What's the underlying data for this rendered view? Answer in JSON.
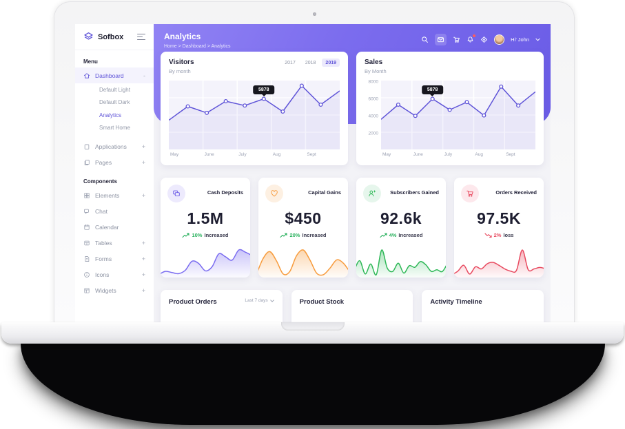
{
  "header": {
    "title": "Analytics",
    "breadcrumb": "Home > Dashboard > Analytics",
    "user_greeting": "Hi' John"
  },
  "sidebar": {
    "brand": "Sofbox",
    "menu_heading": "Menu",
    "components_heading": "Components",
    "expand_indicator": "+",
    "collapse_indicator": "-",
    "items": {
      "dashboard": "Dashboard",
      "default_light": "Default Light",
      "default_dark": "Default Dark",
      "analytics": "Analytics",
      "smart_home": "Smart Home",
      "applications": "Applications",
      "pages": "Pages",
      "elements": "Elements",
      "chat": "Chat",
      "calendar": "Calendar",
      "tables": "Tables",
      "forms": "Forms",
      "icons": "Icons",
      "widgets": "Widgets"
    }
  },
  "chart_data": [
    {
      "type": "line",
      "title": "Visitors",
      "subtitle": "By month",
      "years": [
        "2017",
        "2018",
        "2019"
      ],
      "active_year": "2019",
      "x_labels": [
        "May",
        "June",
        "July",
        "Aug",
        "Sept"
      ],
      "values": [
        3400,
        5000,
        4250,
        5600,
        5100,
        5878,
        4400,
        7400,
        5200,
        6800
      ],
      "ylim": [
        0,
        8000
      ],
      "grid": true,
      "legend": "none",
      "tooltip_index": 5,
      "tooltip_value": "5878",
      "line_color": "#5f54d8"
    },
    {
      "type": "line",
      "title": "Sales",
      "subtitle": "By Month",
      "x_labels": [
        "May",
        "June",
        "July",
        "Aug",
        "Sept"
      ],
      "y_ticks": [
        "8000",
        "6000",
        "4000",
        "2000"
      ],
      "values": [
        3500,
        5200,
        3900,
        5878,
        4600,
        5500,
        3950,
        7300,
        5100,
        6700
      ],
      "ylim": [
        0,
        8000
      ],
      "grid": true,
      "legend": "none",
      "tooltip_index": 3,
      "tooltip_value": "5878",
      "line_color": "#5f54d8"
    },
    {
      "type": "area",
      "title": "Cash Deposits trend",
      "color": "#7a6cf0",
      "values": [
        18,
        24,
        22,
        20,
        26,
        42,
        38,
        25,
        32,
        55,
        50,
        44,
        62,
        58,
        52
      ]
    },
    {
      "type": "area",
      "title": "Capital Gains trend",
      "color": "#f79b3c",
      "values": [
        6,
        45,
        62,
        40,
        8,
        14,
        52,
        66,
        42,
        10,
        6,
        22,
        42,
        34,
        12
      ]
    },
    {
      "type": "area",
      "title": "Subscribers Gained trend",
      "color": "#2eb857",
      "values": [
        22,
        46,
        14,
        38,
        12,
        72,
        28,
        20,
        40,
        16,
        34,
        30,
        44,
        36,
        20,
        24,
        20,
        42
      ]
    },
    {
      "type": "area",
      "title": "Orders Received trend",
      "color": "#e8495f",
      "values": [
        14,
        24,
        40,
        16,
        36,
        30,
        44,
        48,
        40,
        30,
        24,
        26,
        82,
        28,
        30,
        34,
        30
      ]
    }
  ],
  "stats": [
    {
      "title": "Cash Deposits",
      "value": "1.5M",
      "trend_value": "10%",
      "trend_label": "Increased",
      "direction": "up",
      "accent": "#6c5ce7"
    },
    {
      "title": "Capital Gains",
      "value": "$450",
      "trend_value": "20%",
      "trend_label": "Increased",
      "direction": "up",
      "accent": "#f79b3c"
    },
    {
      "title": "Subscribers Gained",
      "value": "92.6k",
      "trend_value": "4%",
      "trend_label": "Increased",
      "direction": "up",
      "accent": "#2eb857"
    },
    {
      "title": "Orders Received",
      "value": "97.5K",
      "trend_value": "2%",
      "trend_label": "loss",
      "direction": "down",
      "accent": "#e8495f"
    }
  ],
  "bottom_cards": [
    {
      "title": "Product Orders",
      "filter": "Last 7 days"
    },
    {
      "title": "Product Stock"
    },
    {
      "title": "Activity Timeline"
    }
  ],
  "colors": {
    "accent": "#5f54d8",
    "header_gradient_start": "#9183f4",
    "header_gradient_end": "#6a5ce6",
    "positive": "#27b05c",
    "negative": "#e8495f",
    "tooltip_bg": "#17171f"
  }
}
